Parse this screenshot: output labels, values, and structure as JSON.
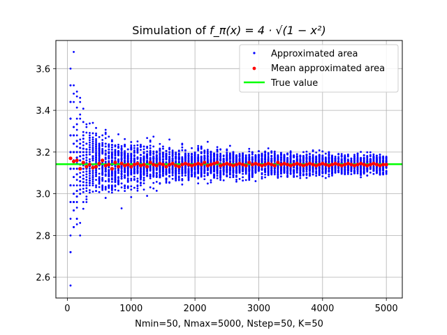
{
  "chart_data": {
    "type": "scatter",
    "title_prefix": "Simulation of ",
    "title_math": "f_π(x) = 4 · √(1 − x²)",
    "xlabel": "Nmin=50, Nmax=5000, Nstep=50, K=50",
    "ylabel": "",
    "xlim": [
      -180,
      5250
    ],
    "ylim": [
      2.5,
      3.735
    ],
    "xticks": [
      0,
      1000,
      2000,
      3000,
      4000,
      5000
    ],
    "xtick_labels": [
      "0",
      "1000",
      "2000",
      "3000",
      "4000",
      "5000"
    ],
    "yticks": [
      2.6,
      2.8,
      3.0,
      3.2,
      3.4,
      3.6
    ],
    "ytick_labels": [
      "2.6",
      "2.8",
      "3.0",
      "3.2",
      "3.4",
      "3.6"
    ],
    "grid": true,
    "legend_position": "top-right",
    "series": [
      {
        "name": "Approximated area",
        "kind": "scatter",
        "color": "#0000ff",
        "n_start": 50,
        "n_step": 50,
        "n_count": 100,
        "samples_per_n": 50,
        "example_points": [
          {
            "x": 50,
            "y": 2.56
          },
          {
            "x": 50,
            "y": 2.72
          },
          {
            "x": 50,
            "y": 3.6
          },
          {
            "x": 100,
            "y": 3.68
          },
          {
            "x": 100,
            "y": 2.84
          },
          {
            "x": 150,
            "y": 3.49
          },
          {
            "x": 200,
            "y": 3.46
          },
          {
            "x": 200,
            "y": 2.8
          },
          {
            "x": 850,
            "y": 2.93
          },
          {
            "x": 1250,
            "y": 2.99
          }
        ]
      },
      {
        "name": "Mean approximated area",
        "kind": "scatter",
        "color": "#ff0000",
        "x": [
          50,
          100,
          150,
          200,
          250,
          300,
          350,
          400,
          450,
          500,
          550,
          600,
          650,
          700,
          750,
          800,
          850,
          900,
          950,
          1000,
          1050,
          1100,
          1150,
          1200,
          1250,
          1300,
          1350,
          1400,
          1450,
          1500,
          1550,
          1600,
          1650,
          1700,
          1750,
          1800,
          1850,
          1900,
          1950,
          2000,
          2050,
          2100,
          2150,
          2200,
          2250,
          2300,
          2350,
          2400,
          2450,
          2500,
          2550,
          2600,
          2650,
          2700,
          2750,
          2800,
          2850,
          2900,
          2950,
          3000,
          3050,
          3100,
          3150,
          3200,
          3250,
          3300,
          3350,
          3400,
          3450,
          3500,
          3550,
          3600,
          3650,
          3700,
          3750,
          3800,
          3850,
          3900,
          3950,
          4000,
          4050,
          4100,
          4150,
          4200,
          4250,
          4300,
          4350,
          4400,
          4450,
          4500,
          4550,
          4600,
          4650,
          4700,
          4750,
          4800,
          4850,
          4900,
          4950,
          5000
        ],
        "y": [
          3.17,
          3.155,
          3.16,
          3.12,
          3.15,
          3.13,
          3.14,
          3.125,
          3.13,
          3.145,
          3.16,
          3.135,
          3.14,
          3.12,
          3.15,
          3.13,
          3.145,
          3.135,
          3.14,
          3.13,
          3.14,
          3.145,
          3.135,
          3.14,
          3.13,
          3.15,
          3.14,
          3.135,
          3.145,
          3.14,
          3.13,
          3.14,
          3.145,
          3.135,
          3.13,
          3.14,
          3.145,
          3.14,
          3.135,
          3.14,
          3.145,
          3.14,
          3.15,
          3.135,
          3.14,
          3.145,
          3.15,
          3.135,
          3.14,
          3.145,
          3.14,
          3.135,
          3.14,
          3.145,
          3.14,
          3.135,
          3.15,
          3.14,
          3.145,
          3.14,
          3.135,
          3.14,
          3.145,
          3.14,
          3.135,
          3.15,
          3.14,
          3.145,
          3.14,
          3.135,
          3.14,
          3.145,
          3.14,
          3.135,
          3.14,
          3.145,
          3.14,
          3.135,
          3.14,
          3.145,
          3.14,
          3.135,
          3.14,
          3.145,
          3.14,
          3.135,
          3.14,
          3.145,
          3.14,
          3.135,
          3.14,
          3.145,
          3.14,
          3.135,
          3.14,
          3.145,
          3.14,
          3.135,
          3.14,
          3.14
        ]
      },
      {
        "name": "True value",
        "kind": "hline",
        "color": "#00ff00",
        "value": 3.14159
      }
    ]
  }
}
